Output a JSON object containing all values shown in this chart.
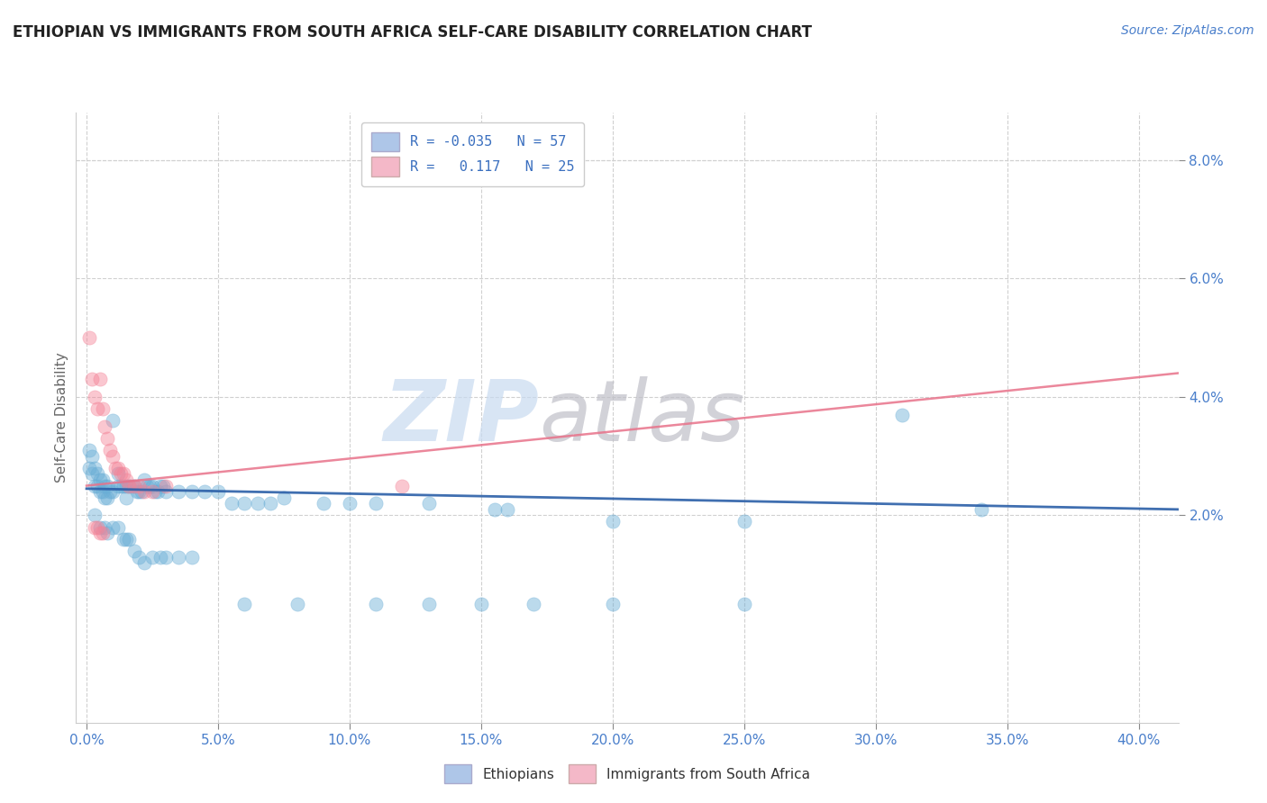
{
  "title": "ETHIOPIAN VS IMMIGRANTS FROM SOUTH AFRICA SELF-CARE DISABILITY CORRELATION CHART",
  "source": "Source: ZipAtlas.com",
  "xlabel_ticks": [
    0.0,
    0.05,
    0.1,
    0.15,
    0.2,
    0.25,
    0.3,
    0.35,
    0.4
  ],
  "xlabel_labels": [
    "0.0%",
    "5.0%",
    "10.0%",
    "15.0%",
    "20.0%",
    "25.0%",
    "30.0%",
    "35.0%",
    "40.0%"
  ],
  "ylabel_ticks": [
    0.02,
    0.04,
    0.06,
    0.08
  ],
  "ylabel_labels": [
    "2.0%",
    "4.0%",
    "6.0%",
    "8.0%"
  ],
  "xlim": [
    -0.004,
    0.415
  ],
  "ylim": [
    -0.015,
    0.088
  ],
  "ylabel": "Self-Care Disability",
  "blue_points": [
    [
      0.001,
      0.031
    ],
    [
      0.001,
      0.028
    ],
    [
      0.002,
      0.03
    ],
    [
      0.002,
      0.027
    ],
    [
      0.003,
      0.028
    ],
    [
      0.003,
      0.025
    ],
    [
      0.004,
      0.027
    ],
    [
      0.004,
      0.025
    ],
    [
      0.005,
      0.026
    ],
    [
      0.005,
      0.024
    ],
    [
      0.006,
      0.026
    ],
    [
      0.006,
      0.024
    ],
    [
      0.007,
      0.025
    ],
    [
      0.007,
      0.023
    ],
    [
      0.008,
      0.025
    ],
    [
      0.008,
      0.023
    ],
    [
      0.009,
      0.024
    ],
    [
      0.01,
      0.036
    ],
    [
      0.01,
      0.024
    ],
    [
      0.012,
      0.027
    ],
    [
      0.012,
      0.025
    ],
    [
      0.013,
      0.025
    ],
    [
      0.014,
      0.025
    ],
    [
      0.015,
      0.025
    ],
    [
      0.015,
      0.023
    ],
    [
      0.016,
      0.025
    ],
    [
      0.017,
      0.025
    ],
    [
      0.018,
      0.025
    ],
    [
      0.019,
      0.024
    ],
    [
      0.02,
      0.024
    ],
    [
      0.021,
      0.024
    ],
    [
      0.022,
      0.026
    ],
    [
      0.023,
      0.025
    ],
    [
      0.024,
      0.025
    ],
    [
      0.025,
      0.025
    ],
    [
      0.026,
      0.024
    ],
    [
      0.027,
      0.024
    ],
    [
      0.028,
      0.025
    ],
    [
      0.029,
      0.025
    ],
    [
      0.03,
      0.024
    ],
    [
      0.035,
      0.024
    ],
    [
      0.04,
      0.024
    ],
    [
      0.045,
      0.024
    ],
    [
      0.05,
      0.024
    ],
    [
      0.055,
      0.022
    ],
    [
      0.06,
      0.022
    ],
    [
      0.065,
      0.022
    ],
    [
      0.07,
      0.022
    ],
    [
      0.075,
      0.023
    ],
    [
      0.09,
      0.022
    ],
    [
      0.1,
      0.022
    ],
    [
      0.11,
      0.022
    ],
    [
      0.13,
      0.022
    ],
    [
      0.155,
      0.021
    ],
    [
      0.16,
      0.021
    ],
    [
      0.2,
      0.019
    ],
    [
      0.25,
      0.019
    ],
    [
      0.31,
      0.037
    ],
    [
      0.34,
      0.021
    ],
    [
      0.003,
      0.02
    ],
    [
      0.005,
      0.018
    ],
    [
      0.007,
      0.018
    ],
    [
      0.008,
      0.017
    ],
    [
      0.01,
      0.018
    ],
    [
      0.012,
      0.018
    ],
    [
      0.014,
      0.016
    ],
    [
      0.015,
      0.016
    ],
    [
      0.016,
      0.016
    ],
    [
      0.018,
      0.014
    ],
    [
      0.02,
      0.013
    ],
    [
      0.022,
      0.012
    ],
    [
      0.025,
      0.013
    ],
    [
      0.028,
      0.013
    ],
    [
      0.03,
      0.013
    ],
    [
      0.035,
      0.013
    ],
    [
      0.04,
      0.013
    ],
    [
      0.06,
      0.005
    ],
    [
      0.08,
      0.005
    ],
    [
      0.11,
      0.005
    ],
    [
      0.13,
      0.005
    ],
    [
      0.15,
      0.005
    ],
    [
      0.17,
      0.005
    ],
    [
      0.2,
      0.005
    ],
    [
      0.25,
      0.005
    ]
  ],
  "pink_points": [
    [
      0.001,
      0.05
    ],
    [
      0.002,
      0.043
    ],
    [
      0.003,
      0.04
    ],
    [
      0.004,
      0.038
    ],
    [
      0.005,
      0.043
    ],
    [
      0.006,
      0.038
    ],
    [
      0.007,
      0.035
    ],
    [
      0.008,
      0.033
    ],
    [
      0.009,
      0.031
    ],
    [
      0.01,
      0.03
    ],
    [
      0.011,
      0.028
    ],
    [
      0.012,
      0.028
    ],
    [
      0.013,
      0.027
    ],
    [
      0.014,
      0.027
    ],
    [
      0.015,
      0.026
    ],
    [
      0.016,
      0.025
    ],
    [
      0.018,
      0.025
    ],
    [
      0.02,
      0.025
    ],
    [
      0.022,
      0.024
    ],
    [
      0.025,
      0.024
    ],
    [
      0.03,
      0.025
    ],
    [
      0.003,
      0.018
    ],
    [
      0.004,
      0.018
    ],
    [
      0.005,
      0.017
    ],
    [
      0.006,
      0.017
    ],
    [
      0.12,
      0.025
    ]
  ],
  "blue_line": {
    "x0": 0.0,
    "x1": 0.415,
    "y0": 0.0245,
    "y1": 0.021
  },
  "pink_line": {
    "x0": 0.0,
    "x1": 0.415,
    "y0": 0.025,
    "y1": 0.044
  },
  "blue_dot_color": "#6aaed6",
  "pink_dot_color": "#f48498",
  "blue_line_color": "#2b5fa8",
  "pink_line_color": "#e8728a",
  "legend_blue_patch": "#aec6e8",
  "legend_pink_patch": "#f4b8c8",
  "grid_color": "#d0d0d0",
  "background_color": "#ffffff",
  "title_color": "#222222",
  "source_color": "#4a7fcb",
  "axis_label_color": "#4a7fcb",
  "watermark_zip_color": "#c8daf0",
  "watermark_atlas_color": "#c0c0c8"
}
